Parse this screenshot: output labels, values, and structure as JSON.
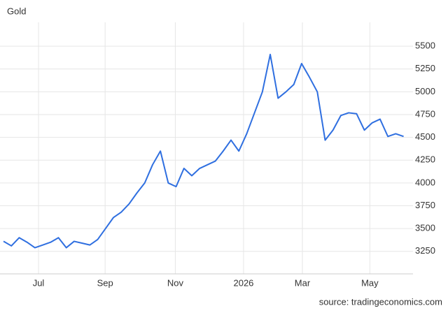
{
  "chart_data": {
    "type": "line",
    "title": "Gold",
    "source": "source: tradingeconomics.com",
    "series": [
      {
        "name": "Gold",
        "color": "#2f6fe0",
        "values": [
          3360,
          3310,
          3400,
          3350,
          3290,
          3320,
          3350,
          3400,
          3290,
          3360,
          3340,
          3320,
          3380,
          3500,
          3620,
          3680,
          3770,
          3890,
          4000,
          4200,
          4350,
          4000,
          3960,
          4160,
          4080,
          4160,
          4200,
          4240,
          4350,
          4470,
          4350,
          4540,
          4770,
          5000,
          5410,
          4930,
          5000,
          5080,
          5310,
          5160,
          5000,
          4470,
          4580,
          4740,
          4770,
          4760,
          4580,
          4660,
          4700,
          4510,
          4540,
          4510
        ]
      }
    ],
    "xlim": [
      -0.45,
      52.2
    ],
    "xticks": [
      {
        "value": 4.46,
        "label": "Jul"
      },
      {
        "value": 12.95,
        "label": "Sep"
      },
      {
        "value": 21.9,
        "label": "Nov"
      },
      {
        "value": 30.6,
        "label": "2026"
      },
      {
        "value": 38.1,
        "label": "Mar"
      },
      {
        "value": 46.7,
        "label": "May"
      }
    ],
    "ylim": [
      3003,
      5762
    ],
    "yticks": [
      3250,
      3500,
      3750,
      4000,
      4250,
      4500,
      4750,
      5000,
      5250,
      5500
    ],
    "grid": true
  }
}
